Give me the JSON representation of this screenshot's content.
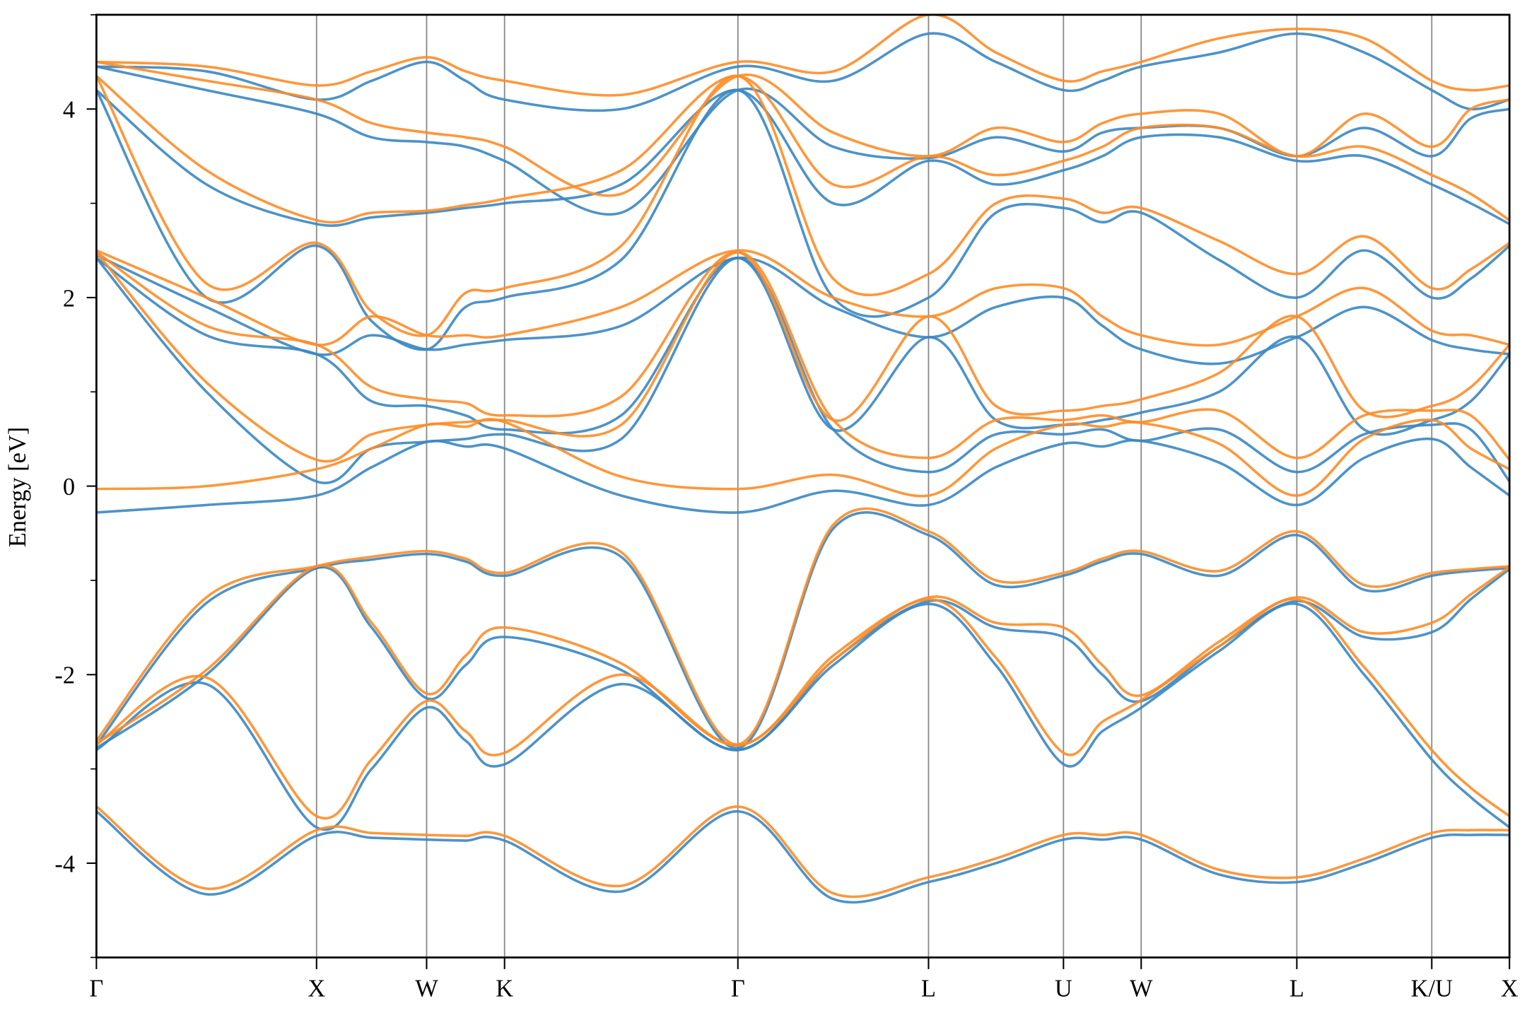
{
  "chart_data": {
    "type": "line",
    "title": "",
    "xlabel": "",
    "ylabel": "Energy [eV]",
    "ylim": [
      -5,
      5
    ],
    "yticks": [
      {
        "value": 4,
        "label": "4"
      },
      {
        "value": 2,
        "label": "2"
      },
      {
        "value": 0,
        "label": "0"
      },
      {
        "value": -2,
        "label": "-2"
      },
      {
        "value": -4,
        "label": "-4"
      }
    ],
    "yminor_ticks": [
      -5,
      -3,
      -1,
      1,
      3,
      5
    ],
    "xlim": [
      0,
      6.419
    ],
    "kpoints": [
      {
        "label": "Γ",
        "x": 0
      },
      {
        "label": "X",
        "x": 1.0
      },
      {
        "label": "W",
        "x": 1.5
      },
      {
        "label": "K",
        "x": 1.854
      },
      {
        "label": "Γ",
        "x": 2.914
      },
      {
        "label": "L",
        "x": 3.78
      },
      {
        "label": "U",
        "x": 4.393
      },
      {
        "label": "W",
        "x": 4.746
      },
      {
        "label": "L",
        "x": 5.453
      },
      {
        "label": "K/U",
        "x": 6.066
      },
      {
        "label": "X",
        "x": 6.419
      }
    ],
    "grid": "vertical lines at high-symmetry points",
    "colors": {
      "blue": "#3a87c2",
      "orange": "#ff8c26"
    },
    "x": [
      0,
      0.5,
      1,
      1.25,
      1.5,
      1.677,
      1.854,
      2.384,
      2.914,
      3.347,
      3.78,
      4.086,
      4.393,
      4.57,
      4.746,
      5.1,
      5.453,
      5.759,
      6.066,
      6.243,
      6.419
    ],
    "series": [
      {
        "color": "blue",
        "bands": [
          [
            -3.45,
            -4.33,
            -3.71,
            -3.73,
            -3.75,
            -3.76,
            -3.76,
            -4.3,
            -3.45,
            -4.38,
            -4.2,
            -4.0,
            -3.75,
            -3.75,
            -3.75,
            -4.12,
            -4.2,
            -4.0,
            -3.73,
            -3.7,
            -3.7
          ],
          [
            -2.8,
            -2.1,
            -3.62,
            -3.0,
            -2.35,
            -2.7,
            -2.95,
            -2.1,
            -2.8,
            -1.9,
            -1.25,
            -1.9,
            -2.95,
            -2.6,
            -2.35,
            -1.75,
            -1.25,
            -2.0,
            -2.9,
            -3.3,
            -3.62
          ],
          [
            -2.78,
            -2.0,
            -0.87,
            -1.5,
            -2.25,
            -1.9,
            -1.6,
            -1.95,
            -2.8,
            -1.85,
            -1.22,
            -1.5,
            -1.6,
            -2.0,
            -2.28,
            -1.7,
            -1.22,
            -1.6,
            -1.55,
            -1.2,
            -0.88
          ],
          [
            -2.75,
            -1.24,
            -0.87,
            -0.78,
            -0.72,
            -0.8,
            -0.95,
            -0.75,
            -2.78,
            -0.45,
            -0.52,
            -1.05,
            -0.95,
            -0.8,
            -0.72,
            -0.95,
            -0.52,
            -1.1,
            -0.95,
            -0.9,
            -0.87
          ],
          [
            -0.28,
            -0.2,
            -0.1,
            0.2,
            0.47,
            0.42,
            0.4,
            -0.1,
            -0.28,
            -0.05,
            -0.2,
            0.2,
            0.45,
            0.42,
            0.48,
            0.25,
            -0.2,
            0.3,
            0.5,
            0.2,
            -0.1
          ],
          [
            2.42,
            1.0,
            0.05,
            0.4,
            0.47,
            0.5,
            0.55,
            0.5,
            2.42,
            0.6,
            0.15,
            0.55,
            0.55,
            0.6,
            0.48,
            0.6,
            0.15,
            0.55,
            0.65,
            0.6,
            0.05
          ],
          [
            2.42,
            1.6,
            1.4,
            0.9,
            0.85,
            0.75,
            0.6,
            0.75,
            2.42,
            0.6,
            1.58,
            0.7,
            0.65,
            0.7,
            0.78,
            1.0,
            1.58,
            0.6,
            0.7,
            0.9,
            1.4
          ],
          [
            2.45,
            1.9,
            1.4,
            1.6,
            1.45,
            1.5,
            1.55,
            1.7,
            2.42,
            1.9,
            1.58,
            1.9,
            2.0,
            1.7,
            1.45,
            1.3,
            1.58,
            1.9,
            1.55,
            1.45,
            1.4
          ],
          [
            4.2,
            2.0,
            2.55,
            1.75,
            1.45,
            1.9,
            2.0,
            2.4,
            4.2,
            2.0,
            2.0,
            2.9,
            2.95,
            2.8,
            2.9,
            2.4,
            2.0,
            2.5,
            2.0,
            2.2,
            2.55
          ],
          [
            4.2,
            3.2,
            2.78,
            2.85,
            2.9,
            2.95,
            3.0,
            3.2,
            4.2,
            3.0,
            3.45,
            3.2,
            3.35,
            3.5,
            3.7,
            3.7,
            3.45,
            3.5,
            3.2,
            3.0,
            2.78
          ],
          [
            4.45,
            4.2,
            3.95,
            3.7,
            3.65,
            3.6,
            3.45,
            2.9,
            4.2,
            3.6,
            3.48,
            3.7,
            3.55,
            3.75,
            3.8,
            3.8,
            3.5,
            3.8,
            3.5,
            3.9,
            4.0
          ],
          [
            4.45,
            4.4,
            4.1,
            4.3,
            4.5,
            4.3,
            4.1,
            4.0,
            4.45,
            4.3,
            4.8,
            4.5,
            4.2,
            4.3,
            4.45,
            4.6,
            4.8,
            4.6,
            4.2,
            4.0,
            4.1
          ]
        ]
      },
      {
        "color": "orange",
        "bands": [
          [
            -3.4,
            -4.27,
            -3.65,
            -3.68,
            -3.7,
            -3.71,
            -3.71,
            -4.24,
            -3.4,
            -4.32,
            -4.15,
            -3.95,
            -3.7,
            -3.7,
            -3.7,
            -4.07,
            -4.15,
            -3.95,
            -3.68,
            -3.65,
            -3.65
          ],
          [
            -2.74,
            -2.03,
            -3.5,
            -2.9,
            -2.28,
            -2.6,
            -2.83,
            -2.0,
            -2.75,
            -1.85,
            -1.2,
            -1.82,
            -2.83,
            -2.5,
            -2.27,
            -1.7,
            -1.2,
            -1.92,
            -2.8,
            -3.2,
            -3.5
          ],
          [
            -2.73,
            -1.95,
            -0.85,
            -1.45,
            -2.2,
            -1.8,
            -1.5,
            -1.88,
            -2.75,
            -1.8,
            -1.18,
            -1.45,
            -1.5,
            -1.9,
            -2.22,
            -1.65,
            -1.18,
            -1.55,
            -1.45,
            -1.15,
            -0.86
          ],
          [
            -2.7,
            -1.18,
            -0.85,
            -0.75,
            -0.69,
            -0.77,
            -0.92,
            -0.7,
            -2.74,
            -0.41,
            -0.48,
            -1.0,
            -0.92,
            -0.77,
            -0.69,
            -0.9,
            -0.48,
            -1.05,
            -0.92,
            -0.88,
            -0.85
          ],
          [
            -0.03,
            0.0,
            0.18,
            0.4,
            0.65,
            0.63,
            0.68,
            0.1,
            -0.03,
            0.12,
            -0.1,
            0.4,
            0.65,
            0.63,
            0.67,
            0.45,
            -0.1,
            0.5,
            0.7,
            0.4,
            0.18
          ],
          [
            2.48,
            1.1,
            0.28,
            0.55,
            0.65,
            0.68,
            0.7,
            0.65,
            2.48,
            0.7,
            0.3,
            0.7,
            0.7,
            0.75,
            0.68,
            0.8,
            0.3,
            0.75,
            0.8,
            0.75,
            0.28
          ],
          [
            2.48,
            1.7,
            1.5,
            1.05,
            0.92,
            0.88,
            0.75,
            0.95,
            2.48,
            0.7,
            1.8,
            0.85,
            0.8,
            0.85,
            0.92,
            1.2,
            1.8,
            0.8,
            0.85,
            1.05,
            1.5
          ],
          [
            2.5,
            2.0,
            1.5,
            1.8,
            1.6,
            1.6,
            1.6,
            1.9,
            2.5,
            2.0,
            1.8,
            2.1,
            2.1,
            1.8,
            1.6,
            1.5,
            1.8,
            2.1,
            1.65,
            1.6,
            1.5
          ],
          [
            4.35,
            2.15,
            2.58,
            1.85,
            1.6,
            2.05,
            2.1,
            2.55,
            4.35,
            2.2,
            2.25,
            3.0,
            3.05,
            2.9,
            2.95,
            2.6,
            2.25,
            2.65,
            2.1,
            2.3,
            2.58
          ],
          [
            4.35,
            3.35,
            2.82,
            2.9,
            2.92,
            2.98,
            3.05,
            3.35,
            4.35,
            3.2,
            3.5,
            3.3,
            3.45,
            3.6,
            3.8,
            3.8,
            3.5,
            3.6,
            3.3,
            3.1,
            2.82
          ],
          [
            4.5,
            4.3,
            4.1,
            3.85,
            3.75,
            3.7,
            3.6,
            3.1,
            4.35,
            3.75,
            3.5,
            3.8,
            3.65,
            3.85,
            3.95,
            3.95,
            3.5,
            3.95,
            3.6,
            4.0,
            4.1
          ],
          [
            4.5,
            4.45,
            4.25,
            4.4,
            4.55,
            4.4,
            4.3,
            4.15,
            4.5,
            4.4,
            5.0,
            4.6,
            4.3,
            4.4,
            4.5,
            4.75,
            4.85,
            4.75,
            4.3,
            4.2,
            4.25
          ]
        ]
      }
    ]
  }
}
